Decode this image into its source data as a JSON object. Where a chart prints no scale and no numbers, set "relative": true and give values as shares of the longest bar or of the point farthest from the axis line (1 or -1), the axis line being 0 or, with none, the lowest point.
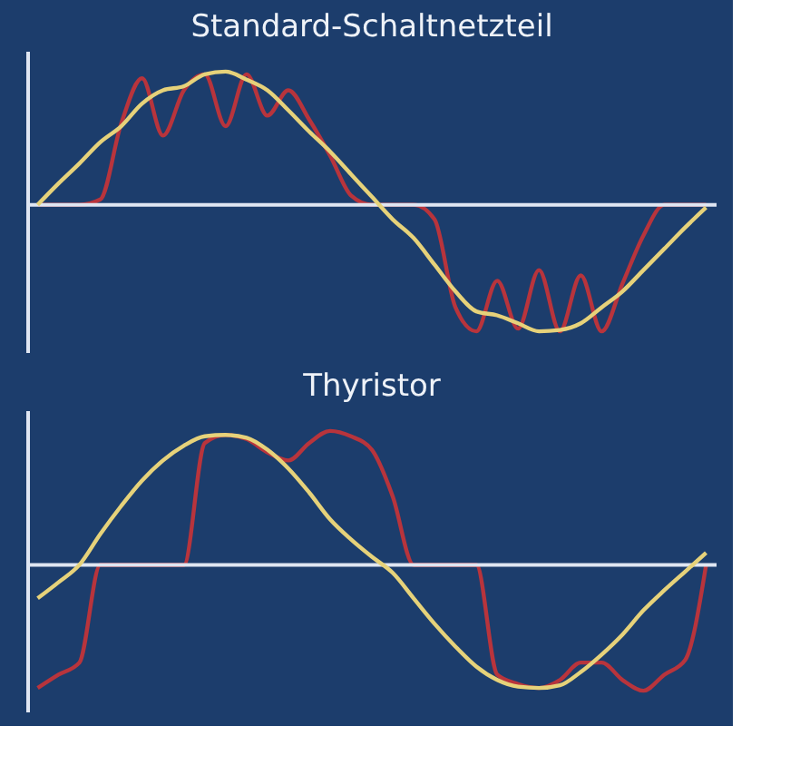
{
  "chart_data": [
    {
      "type": "line",
      "title": "Standard-Schaltnetzteil",
      "relative": true,
      "line_style": "solid",
      "categories": [
        null,
        null,
        null,
        null,
        null,
        null,
        null,
        null,
        null,
        null,
        null,
        null,
        null,
        null,
        null,
        null,
        null,
        null,
        null,
        null,
        null,
        null,
        null,
        null,
        null,
        null,
        null,
        null,
        null,
        null,
        null,
        null,
        null
      ],
      "series": [
        {
          "color": "#b8343c",
          "values": [
            0,
            0,
            0,
            0.04,
            0.61,
            0.95,
            0.52,
            0.86,
            0.98,
            0.59,
            0.98,
            0.67,
            0.86,
            0.64,
            0.37,
            0.07,
            0,
            0,
            0,
            -0.11,
            -0.77,
            -0.95,
            -0.57,
            -0.93,
            -0.49,
            -0.95,
            -0.53,
            -0.95,
            -0.59,
            -0.23,
            0,
            0,
            0
          ]
        },
        {
          "color": "#e6d27a",
          "values": [
            0,
            0.16,
            0.31,
            0.47,
            0.59,
            0.76,
            0.86,
            0.89,
            0.98,
            1.0,
            0.94,
            0.86,
            0.71,
            0.55,
            0.4,
            0.23,
            0.06,
            -0.11,
            -0.25,
            -0.45,
            -0.65,
            -0.8,
            -0.83,
            -0.89,
            -0.95,
            -0.94,
            -0.89,
            -0.77,
            -0.65,
            -0.49,
            -0.33,
            -0.17,
            -0.02
          ]
        }
      ]
    },
    {
      "type": "line",
      "title": "Thyristor",
      "relative": true,
      "line_style": "solid",
      "categories": [
        null,
        null,
        null,
        null,
        null,
        null,
        null,
        null,
        null,
        null,
        null,
        null,
        null,
        null,
        null,
        null,
        null,
        null,
        null,
        null,
        null,
        null,
        null,
        null,
        null,
        null,
        null,
        null,
        null,
        null,
        null,
        null,
        null
      ],
      "series": [
        {
          "color": "#b8343c",
          "values": [
            -0.92,
            -0.82,
            -0.73,
            0,
            0,
            0,
            0,
            0,
            0.91,
            0.97,
            0.94,
            0.84,
            0.78,
            0.91,
            1.0,
            0.96,
            0.86,
            0.51,
            0,
            0,
            0,
            0,
            -0.82,
            -0.89,
            -0.92,
            -0.86,
            -0.73,
            -0.73,
            -0.86,
            -0.94,
            -0.82,
            -0.71,
            0
          ]
        },
        {
          "color": "#e6d27a",
          "values": [
            -0.25,
            -0.13,
            0,
            0.23,
            0.44,
            0.63,
            0.78,
            0.89,
            0.96,
            0.97,
            0.95,
            0.86,
            0.72,
            0.54,
            0.34,
            0.19,
            0.06,
            -0.06,
            -0.25,
            -0.44,
            -0.61,
            -0.76,
            -0.86,
            -0.91,
            -0.92,
            -0.9,
            -0.8,
            -0.67,
            -0.52,
            -0.34,
            -0.19,
            -0.05,
            0.09
          ]
        }
      ]
    }
  ]
}
